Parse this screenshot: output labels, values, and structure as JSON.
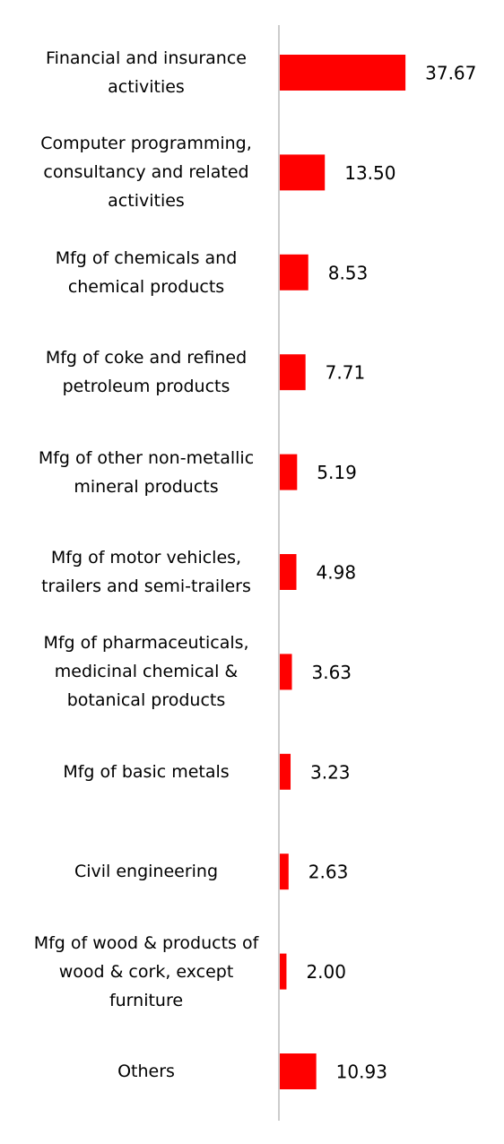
{
  "chart_data": {
    "type": "bar",
    "orientation": "horizontal",
    "color": "#ff0000",
    "categories": [
      "Financial and insurance activities",
      "Computer programming, consultancy and related activities",
      "Mfg of chemicals and chemical products",
      "Mfg of coke and refined petroleum products",
      "Mfg of other non-metallic mineral products",
      "Mfg of motor vehicles, trailers and semi-trailers",
      "Mfg of pharmaceuticals, medicinal chemical & botanical products",
      "Mfg of basic metals",
      "Civil engineering",
      "Mfg of wood & products of wood & cork, except furniture",
      "Others"
    ],
    "values": [
      37.67,
      13.5,
      8.53,
      7.71,
      5.19,
      4.98,
      3.63,
      3.23,
      2.63,
      2.0,
      10.93
    ],
    "value_labels": [
      "37.67",
      "13.50",
      "8.53",
      "7.71",
      "5.19",
      "4.98",
      "3.63",
      "3.23",
      "2.63",
      "2.00",
      "10.93"
    ]
  }
}
